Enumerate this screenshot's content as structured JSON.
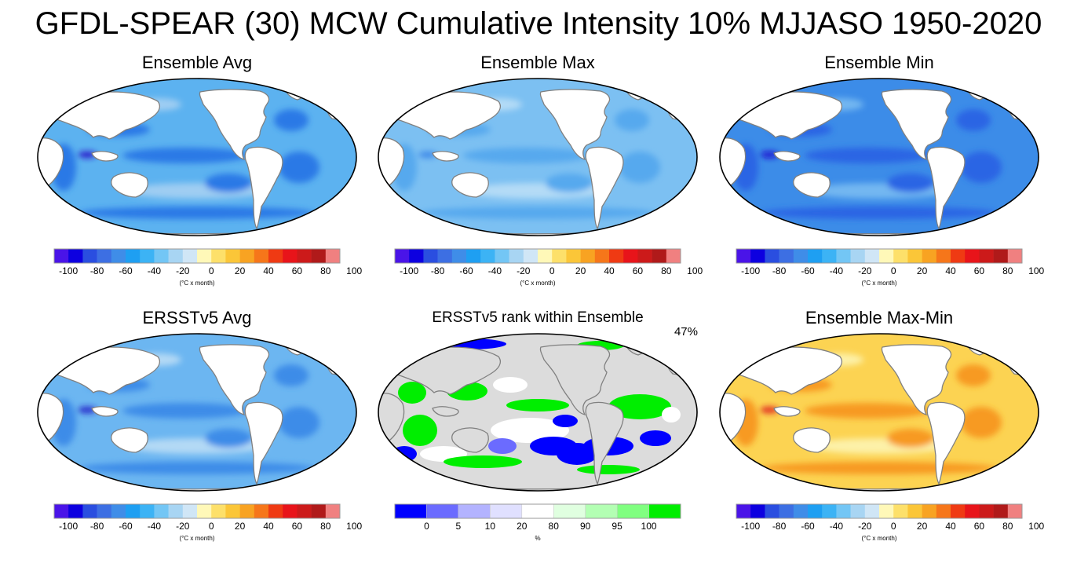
{
  "title": "GFDL-SPEAR (30) MCW Cumulative Intensity 10% MJJASO 1950-2020",
  "panels": [
    {
      "id": "ensemble-avg",
      "title": "Ensemble Avg",
      "scheme": "avg",
      "colorbar": "diverging"
    },
    {
      "id": "ensemble-max",
      "title": "Ensemble Max",
      "scheme": "max",
      "colorbar": "diverging"
    },
    {
      "id": "ensemble-min",
      "title": "Ensemble Min",
      "scheme": "min",
      "colorbar": "diverging"
    },
    {
      "id": "ersstv5-avg",
      "title": "ERSSTv5 Avg",
      "scheme": "ersst",
      "colorbar": "diverging"
    },
    {
      "id": "ersstv5-rank",
      "title": "ERSSTv5 rank within Ensemble",
      "scheme": "rank",
      "colorbar": "rank",
      "percent_label": "47%"
    },
    {
      "id": "ensemble-max-min",
      "title": "Ensemble Max-Min",
      "scheme": "maxmin",
      "colorbar": "diverging"
    }
  ],
  "colorbars": {
    "diverging": {
      "colors": [
        "#4a14e8",
        "#0d00e0",
        "#2a4ee0",
        "#3d6fe3",
        "#3f8de8",
        "#1e9ff2",
        "#3cb3f5",
        "#73c6f5",
        "#a8d5f3",
        "#d0e6f6",
        "#fff8b8",
        "#fde06a",
        "#fbc638",
        "#f8a322",
        "#f6761a",
        "#ef3a13",
        "#e8141a",
        "#cc1a1a",
        "#b01a1a",
        "#f08080"
      ],
      "tick_labels": [
        "-100",
        "-80",
        "-60",
        "-40",
        "-20",
        "0",
        "20",
        "40",
        "60",
        "80",
        "100"
      ],
      "unit_label": "(°C x month)"
    },
    "rank": {
      "colors": [
        "#0000ff",
        "#6b6bff",
        "#b3b3ff",
        "#e0e0ff",
        "#ffffff",
        "#e0ffe0",
        "#b3ffb3",
        "#80ff80",
        "#00ee00"
      ],
      "bins": [
        0,
        5,
        10,
        20,
        80,
        90,
        95,
        100
      ],
      "tick_labels": [
        "0",
        "5",
        "10",
        "20",
        "80",
        "90",
        "95",
        "100"
      ],
      "unit_label": "%"
    }
  },
  "map_colors": {
    "land": "#ffffff",
    "rank_land": "#dcdcdc",
    "coast": "#808080",
    "avg": {
      "base": "#5cb2f0",
      "strong": "#2c79e6",
      "deep": "#2518c8",
      "light": "#9fcdf2"
    },
    "max": {
      "base": "#7cc0f2",
      "strong": "#56a9ee",
      "deep": "#3b86e8",
      "light": "#b4dbf6"
    },
    "min": {
      "base": "#3c8ce8",
      "strong": "#2c65e4",
      "deep": "#1f0fd0",
      "light": "#73b7f1"
    },
    "ersst": {
      "base": "#6cb6f1",
      "strong": "#3d8ce8",
      "deep": "#2020c8",
      "light": "#b3d9f5"
    },
    "maxmin": {
      "base": "#fcd352",
      "strong": "#f79a22",
      "deep": "#e0201a",
      "light": "#fdf1a8"
    }
  }
}
